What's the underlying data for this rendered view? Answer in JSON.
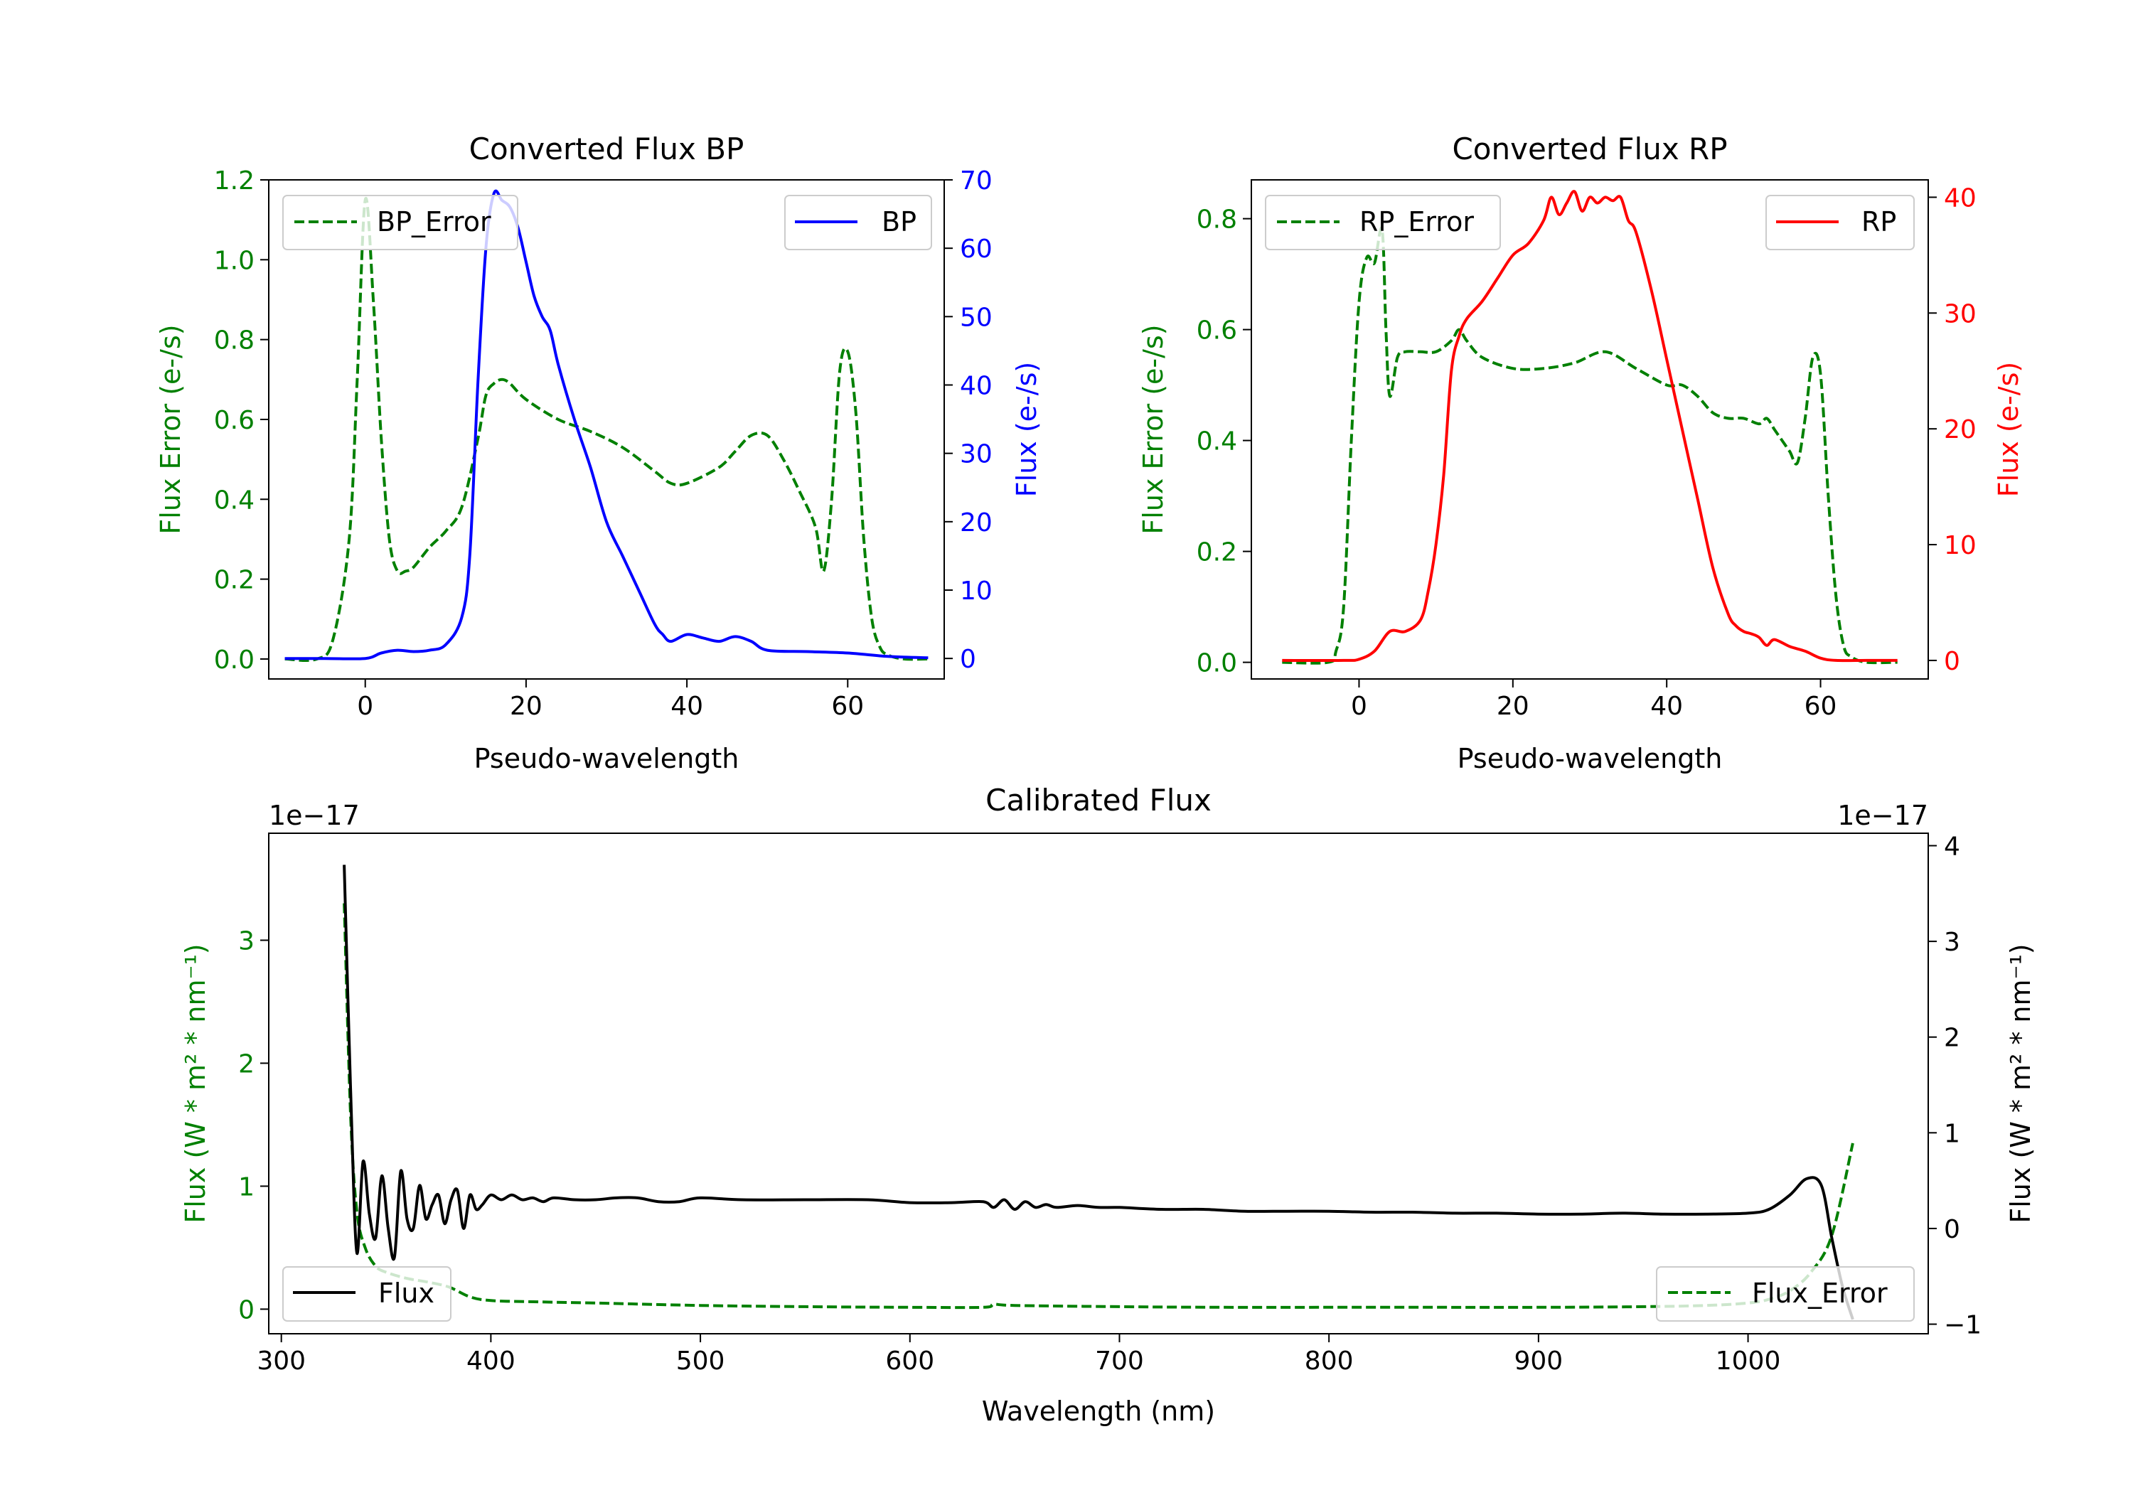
{
  "colors": {
    "bp_flux": "#0000ff",
    "rp_flux": "#ff0000",
    "error": "#008000",
    "cal_flux": "#000000",
    "axis": "#000000"
  },
  "chart_data": [
    {
      "id": "bp",
      "type": "line",
      "title": "Converted Flux BP",
      "xlabel": "Pseudo-wavelength",
      "ylabel_left": "Flux Error (e-/s)",
      "ylabel_right": "Flux (e-/s)",
      "xlim": [
        -12,
        72
      ],
      "ylim_left": [
        -0.05,
        1.2
      ],
      "ylim_right": [
        -3,
        70
      ],
      "x_ticks": [
        0,
        20,
        40,
        60
      ],
      "x_tick_labels": [
        "0",
        "20",
        "40",
        "60"
      ],
      "y_left_ticks": [
        0.0,
        0.2,
        0.4,
        0.6,
        0.8,
        1.0,
        1.2
      ],
      "y_left_tick_labels": [
        "0.0",
        "0.2",
        "0.4",
        "0.6",
        "0.8",
        "1.0",
        "1.2"
      ],
      "y_right_ticks": [
        0,
        10,
        20,
        30,
        40,
        50,
        60,
        70
      ],
      "y_right_tick_labels": [
        "0",
        "10",
        "20",
        "30",
        "40",
        "50",
        "60",
        "70"
      ],
      "legend_left": "BP_Error",
      "legend_right": "BP",
      "flux_series": {
        "name": "BP",
        "x": [
          -10,
          -5,
          0,
          2,
          4,
          6,
          8,
          10,
          12,
          13,
          14,
          15,
          16,
          17,
          18,
          19,
          20,
          21,
          22,
          23,
          24,
          26,
          28,
          30,
          32,
          34,
          36,
          37,
          38,
          40,
          42,
          44,
          46,
          48,
          50,
          55,
          60,
          65,
          70
        ],
        "y": [
          0,
          0,
          0,
          0.8,
          1.2,
          1.0,
          1.2,
          2.0,
          6,
          15,
          40,
          60,
          68,
          67,
          66,
          63,
          58,
          53,
          50,
          48,
          43,
          35,
          28,
          20,
          15,
          10,
          5,
          3.5,
          2.5,
          3.5,
          3.0,
          2.5,
          3.2,
          2.5,
          1.2,
          1.0,
          0.8,
          0.3,
          0.1
        ]
      },
      "error_series": {
        "name": "BP_Error",
        "x": [
          -10,
          -6,
          -4,
          -2,
          -1,
          0,
          1,
          2,
          3,
          4,
          5,
          6,
          8,
          10,
          12,
          14,
          15,
          16,
          17,
          18,
          20,
          24,
          28,
          32,
          36,
          38,
          40,
          44,
          46,
          48,
          50,
          52,
          54,
          56,
          57,
          58,
          59,
          60,
          61,
          62,
          63,
          64,
          65,
          67,
          70
        ],
        "y": [
          0,
          0,
          0.05,
          0.3,
          0.7,
          1.15,
          0.9,
          0.55,
          0.3,
          0.22,
          0.22,
          0.23,
          0.28,
          0.32,
          0.38,
          0.55,
          0.66,
          0.69,
          0.7,
          0.69,
          0.65,
          0.6,
          0.57,
          0.53,
          0.47,
          0.44,
          0.44,
          0.48,
          0.52,
          0.56,
          0.56,
          0.5,
          0.42,
          0.33,
          0.22,
          0.4,
          0.72,
          0.77,
          0.62,
          0.3,
          0.1,
          0.03,
          0.01,
          0,
          0
        ]
      }
    },
    {
      "id": "rp",
      "type": "line",
      "title": "Converted Flux RP",
      "xlabel": "Pseudo-wavelength",
      "ylabel_left": "Flux Error (e-/s)",
      "ylabel_right": "Flux (e-/s)",
      "xlim": [
        -14,
        74
      ],
      "ylim_left": [
        -0.03,
        0.87
      ],
      "ylim_right": [
        -1.6,
        41.5
      ],
      "x_ticks": [
        0,
        20,
        40,
        60
      ],
      "x_tick_labels": [
        "0",
        "20",
        "40",
        "60"
      ],
      "y_left_ticks": [
        0.0,
        0.2,
        0.4,
        0.6,
        0.8
      ],
      "y_left_tick_labels": [
        "0.0",
        "0.2",
        "0.4",
        "0.6",
        "0.8"
      ],
      "y_right_ticks": [
        0,
        10,
        20,
        30,
        40
      ],
      "y_right_tick_labels": [
        "0",
        "10",
        "20",
        "30",
        "40"
      ],
      "legend_left": "RP_Error",
      "legend_right": "RP",
      "flux_series": {
        "name": "RP",
        "x": [
          -10,
          -2,
          0,
          2,
          4,
          6,
          8,
          9,
          10,
          11,
          12,
          13,
          14,
          16,
          18,
          20,
          22,
          24,
          25,
          26,
          27,
          28,
          29,
          30,
          31,
          32,
          33,
          34,
          35,
          36,
          38,
          40,
          42,
          44,
          46,
          48,
          49,
          50,
          51,
          52,
          53,
          54,
          56,
          58,
          60,
          62,
          66,
          70
        ],
        "y": [
          0,
          0,
          0.1,
          0.8,
          2.5,
          2.5,
          3.5,
          6,
          10,
          16,
          25,
          28,
          29.5,
          31,
          33,
          35,
          36,
          38,
          40,
          38.5,
          39.5,
          40.5,
          38.8,
          40,
          39.5,
          40,
          39.7,
          40,
          38,
          37,
          32,
          26,
          20,
          14,
          8,
          4,
          3,
          2.5,
          2.3,
          2,
          1.3,
          1.8,
          1.2,
          0.8,
          0.2,
          0,
          0,
          0
        ]
      },
      "error_series": {
        "name": "RP_Error",
        "x": [
          -10,
          -4,
          -3,
          -2,
          -1,
          0,
          1,
          2,
          3,
          3.5,
          4,
          5,
          6,
          8,
          10,
          12,
          13,
          14,
          16,
          20,
          24,
          28,
          32,
          36,
          40,
          42,
          44,
          46,
          48,
          50,
          52,
          53,
          54,
          55,
          56,
          57,
          58,
          59,
          60,
          61,
          62,
          63,
          64,
          66,
          70
        ],
        "y": [
          0,
          0,
          0.02,
          0.1,
          0.4,
          0.65,
          0.73,
          0.72,
          0.78,
          0.6,
          0.48,
          0.55,
          0.56,
          0.56,
          0.56,
          0.58,
          0.6,
          0.58,
          0.55,
          0.53,
          0.53,
          0.54,
          0.56,
          0.53,
          0.5,
          0.5,
          0.48,
          0.45,
          0.44,
          0.44,
          0.43,
          0.44,
          0.42,
          0.4,
          0.38,
          0.36,
          0.44,
          0.55,
          0.52,
          0.3,
          0.12,
          0.03,
          0.01,
          0,
          0
        ]
      }
    },
    {
      "id": "cal",
      "type": "line",
      "title": "Calibrated Flux",
      "xlabel": "Wavelength (nm)",
      "ylabel_left": "Flux (W * m² * nm⁻¹)",
      "ylabel_right": "Flux (W * m² * nm⁻¹)",
      "offset_left": "1e−17",
      "offset_right": "1e−17",
      "xlim": [
        294,
        1086
      ],
      "ylim_left": [
        -0.2,
        3.87
      ],
      "ylim_right": [
        -1.1,
        4.13
      ],
      "x_ticks": [
        300,
        400,
        500,
        600,
        700,
        800,
        900,
        1000
      ],
      "x_tick_labels": [
        "300",
        "400",
        "500",
        "600",
        "700",
        "800",
        "900",
        "1000"
      ],
      "y_left_ticks": [
        0,
        1,
        2,
        3
      ],
      "y_left_tick_labels": [
        "0",
        "1",
        "2",
        "3"
      ],
      "y_right_ticks": [
        -1,
        0,
        1,
        2,
        3,
        4
      ],
      "y_right_tick_labels": [
        "−1",
        "0",
        "1",
        "2",
        "3",
        "4"
      ],
      "legend_left": "Flux",
      "legend_right": "Flux_Error",
      "flux_series": {
        "name": "Flux",
        "x": [
          330,
          333,
          336,
          339,
          342,
          345,
          348,
          351,
          354,
          357,
          360,
          363,
          366,
          369,
          372,
          375,
          378,
          381,
          384,
          387,
          390,
          393,
          396,
          400,
          405,
          410,
          415,
          420,
          425,
          430,
          440,
          450,
          460,
          470,
          480,
          490,
          500,
          520,
          550,
          580,
          600,
          620,
          635,
          640,
          645,
          650,
          655,
          660,
          665,
          670,
          680,
          690,
          700,
          720,
          740,
          760,
          780,
          800,
          820,
          840,
          860,
          880,
          900,
          920,
          940,
          960,
          980,
          1000,
          1010,
          1020,
          1028,
          1035,
          1040,
          1045,
          1050
        ],
        "y": [
          3.8,
          1.5,
          -0.25,
          0.7,
          0.15,
          -0.1,
          0.55,
          0.0,
          -0.3,
          0.6,
          0.1,
          0.0,
          0.45,
          0.1,
          0.25,
          0.35,
          0.05,
          0.3,
          0.4,
          0.0,
          0.35,
          0.2,
          0.25,
          0.35,
          0.3,
          0.35,
          0.3,
          0.32,
          0.28,
          0.32,
          0.3,
          0.3,
          0.32,
          0.32,
          0.28,
          0.28,
          0.32,
          0.3,
          0.3,
          0.3,
          0.27,
          0.27,
          0.28,
          0.22,
          0.3,
          0.2,
          0.28,
          0.22,
          0.25,
          0.22,
          0.24,
          0.22,
          0.22,
          0.2,
          0.2,
          0.18,
          0.18,
          0.18,
          0.17,
          0.17,
          0.16,
          0.16,
          0.15,
          0.15,
          0.16,
          0.15,
          0.15,
          0.16,
          0.2,
          0.35,
          0.52,
          0.45,
          -0.1,
          -0.6,
          -0.95
        ]
      },
      "error_series": {
        "name": "Flux_Error",
        "x": [
          330,
          333,
          336,
          340,
          345,
          350,
          360,
          370,
          380,
          390,
          400,
          420,
          450,
          500,
          550,
          600,
          635,
          640,
          650,
          700,
          750,
          800,
          850,
          900,
          950,
          980,
          1000,
          1010,
          1020,
          1030,
          1040,
          1050
        ],
        "y": [
          3.3,
          1.6,
          0.8,
          0.5,
          0.35,
          0.3,
          0.25,
          0.22,
          0.18,
          0.1,
          0.07,
          0.06,
          0.05,
          0.03,
          0.02,
          0.015,
          0.015,
          0.04,
          0.03,
          0.02,
          0.015,
          0.015,
          0.015,
          0.015,
          0.02,
          0.03,
          0.05,
          0.08,
          0.15,
          0.3,
          0.6,
          1.35
        ]
      }
    }
  ]
}
